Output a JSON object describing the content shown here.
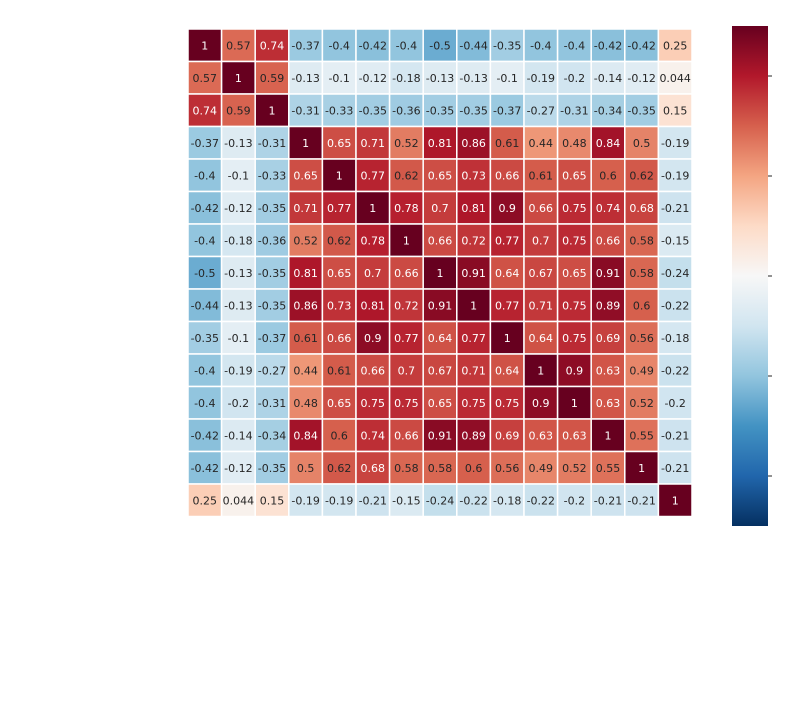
{
  "chart_data": {
    "type": "heatmap",
    "title": "",
    "xlabel": "",
    "ylabel": "",
    "row_labels": [
      "",
      "",
      "",
      "",
      "",
      "",
      "",
      "",
      "",
      "",
      "",
      "",
      "",
      "",
      ""
    ],
    "col_labels": [
      "",
      "",
      "",
      "",
      "",
      "",
      "",
      "",
      "",
      "",
      "",
      "",
      "",
      "",
      ""
    ],
    "values": [
      [
        1,
        0.57,
        0.74,
        -0.37,
        -0.4,
        -0.42,
        -0.4,
        -0.5,
        -0.44,
        -0.35,
        -0.4,
        -0.4,
        -0.42,
        -0.42,
        0.25
      ],
      [
        0.57,
        1,
        0.59,
        -0.13,
        -0.1,
        -0.12,
        -0.18,
        -0.13,
        -0.13,
        -0.1,
        -0.19,
        -0.2,
        -0.14,
        -0.12,
        0.044
      ],
      [
        0.74,
        0.59,
        1,
        -0.31,
        -0.33,
        -0.35,
        -0.36,
        -0.35,
        -0.35,
        -0.37,
        -0.27,
        -0.31,
        -0.34,
        -0.35,
        0.15
      ],
      [
        -0.37,
        -0.13,
        -0.31,
        1,
        0.65,
        0.71,
        0.52,
        0.81,
        0.86,
        0.61,
        0.44,
        0.48,
        0.84,
        0.5,
        -0.19
      ],
      [
        -0.4,
        -0.1,
        -0.33,
        0.65,
        1,
        0.77,
        0.62,
        0.65,
        0.73,
        0.66,
        0.61,
        0.65,
        0.6,
        0.62,
        -0.19
      ],
      [
        -0.42,
        -0.12,
        -0.35,
        0.71,
        0.77,
        1,
        0.78,
        0.7,
        0.81,
        0.9,
        0.66,
        0.75,
        0.74,
        0.68,
        -0.21
      ],
      [
        -0.4,
        -0.18,
        -0.36,
        0.52,
        0.62,
        0.78,
        1,
        0.66,
        0.72,
        0.77,
        0.7,
        0.75,
        0.66,
        0.58,
        -0.15
      ],
      [
        -0.5,
        -0.13,
        -0.35,
        0.81,
        0.65,
        0.7,
        0.66,
        1,
        0.91,
        0.64,
        0.67,
        0.65,
        0.91,
        0.58,
        -0.24
      ],
      [
        -0.44,
        -0.13,
        -0.35,
        0.86,
        0.73,
        0.81,
        0.72,
        0.91,
        1,
        0.77,
        0.71,
        0.75,
        0.89,
        0.6,
        -0.22
      ],
      [
        -0.35,
        -0.1,
        -0.37,
        0.61,
        0.66,
        0.9,
        0.77,
        0.64,
        0.77,
        1,
        0.64,
        0.75,
        0.69,
        0.56,
        -0.18
      ],
      [
        -0.4,
        -0.19,
        -0.27,
        0.44,
        0.61,
        0.66,
        0.7,
        0.67,
        0.71,
        0.64,
        1,
        0.9,
        0.63,
        0.49,
        -0.22
      ],
      [
        -0.4,
        -0.2,
        -0.31,
        0.48,
        0.65,
        0.75,
        0.75,
        0.65,
        0.75,
        0.75,
        0.9,
        1,
        0.63,
        0.52,
        -0.2
      ],
      [
        -0.42,
        -0.14,
        -0.34,
        0.84,
        0.6,
        0.74,
        0.66,
        0.91,
        0.89,
        0.69,
        0.63,
        0.63,
        1,
        0.55,
        -0.21
      ],
      [
        -0.42,
        -0.12,
        -0.35,
        0.5,
        0.62,
        0.68,
        0.58,
        0.58,
        0.6,
        0.56,
        0.49,
        0.52,
        0.55,
        1,
        -0.21
      ],
      [
        0.25,
        0.044,
        0.15,
        -0.19,
        -0.19,
        -0.21,
        -0.15,
        -0.24,
        -0.22,
        -0.18,
        -0.22,
        -0.2,
        -0.21,
        -0.21,
        1
      ]
    ],
    "vmin": -1,
    "vmax": 1,
    "annot": true,
    "colormap": "RdBu_r",
    "colormap_stops": [
      "#053061",
      "#2166ac",
      "#4393c3",
      "#92c5de",
      "#d1e5f0",
      "#f7f7f7",
      "#fddbc7",
      "#f4a582",
      "#d6604d",
      "#b2182b",
      "#67001f"
    ],
    "colorbar": {
      "shown": true,
      "tick_values": [
        -0.8,
        -0.4,
        0,
        0.4,
        0.8
      ],
      "tick_labels": [
        "",
        "",
        "",
        "",
        ""
      ]
    },
    "grid": false,
    "legend": "none"
  }
}
